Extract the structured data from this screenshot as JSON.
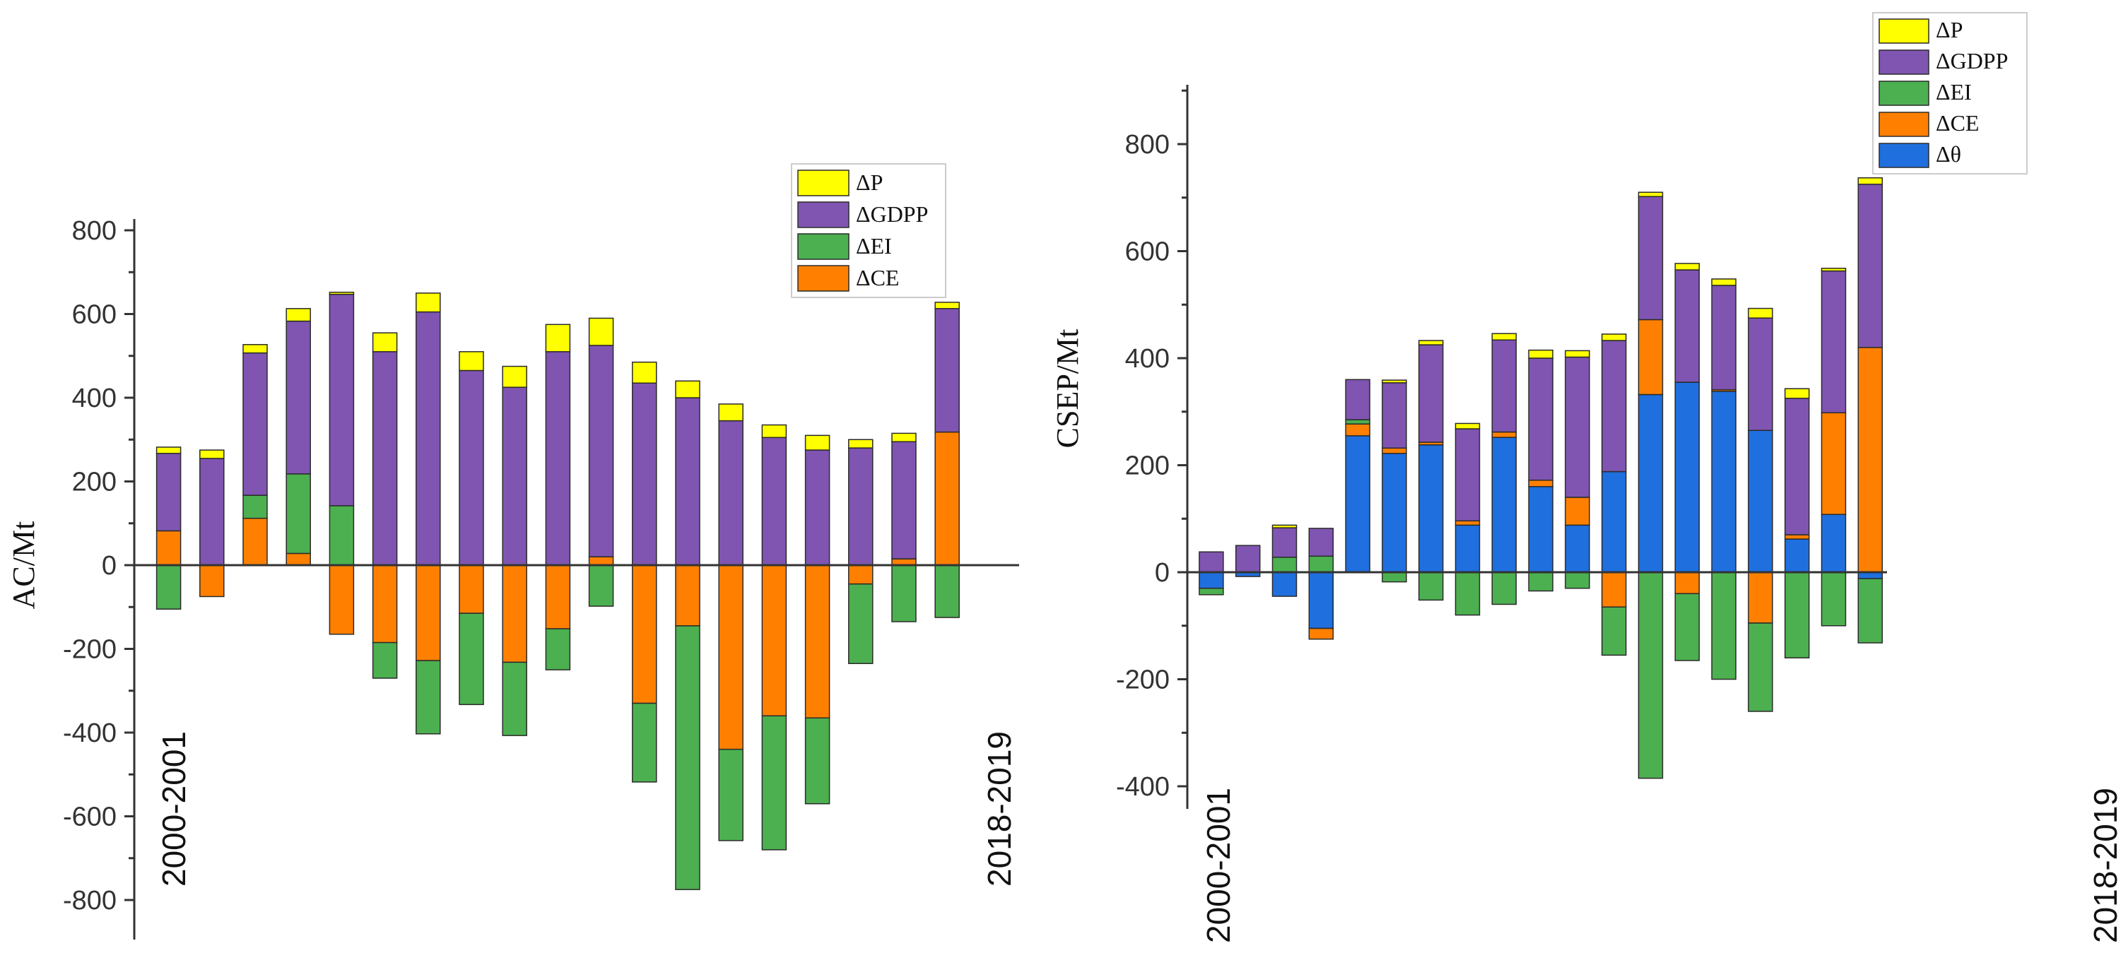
{
  "chart_data": [
    {
      "type": "stacked-bar",
      "id": "ac",
      "title": "",
      "xlabel": "",
      "ylabel": "AC/Mt",
      "ylim": [
        -900,
        800
      ],
      "yticks": [
        -800,
        -600,
        -400,
        -200,
        0,
        200,
        400,
        600,
        800
      ],
      "grid": false,
      "legend_position": "top-right",
      "first_period": "2000-2001",
      "last_period": "2018-2019",
      "series": [
        {
          "name": "ΔCE",
          "color": "#FF8000",
          "values": [
            82,
            -75,
            112,
            28,
            -165,
            -185,
            -228,
            -115,
            -232,
            -152,
            20,
            -330,
            -145,
            -440,
            -360,
            -365,
            -45,
            15,
            318
          ]
        },
        {
          "name": "ΔEI",
          "color": "#4CB050",
          "values": [
            -105,
            0,
            55,
            190,
            142,
            -85,
            -175,
            -218,
            -175,
            -98,
            -98,
            -188,
            -630,
            -218,
            -320,
            -205,
            -190,
            -135,
            -125
          ]
        },
        {
          "name": "ΔGDPP",
          "color": "#7F55B1",
          "values": [
            185,
            255,
            340,
            365,
            505,
            510,
            605,
            465,
            425,
            510,
            505,
            435,
            400,
            345,
            305,
            275,
            280,
            280,
            295
          ]
        },
        {
          "name": "ΔP",
          "color": "#FFFF00",
          "values": [
            15,
            20,
            20,
            30,
            5,
            45,
            45,
            45,
            50,
            65,
            65,
            50,
            40,
            40,
            30,
            35,
            20,
            20,
            15
          ]
        }
      ]
    },
    {
      "type": "stacked-bar",
      "id": "csep",
      "title": "",
      "xlabel": "",
      "ylabel": "CSEP/Mt",
      "ylim": [
        -500,
        900
      ],
      "yticks": [
        -400,
        -200,
        0,
        200,
        400,
        600,
        800
      ],
      "grid": false,
      "legend_position": "top-right",
      "first_period": "2000-2001",
      "last_period": "2018-2019",
      "series": [
        {
          "name": "Δθ",
          "color": "#1F6FDE",
          "values": [
            -30,
            -8,
            -45,
            -105,
            255,
            222,
            238,
            88,
            252,
            160,
            88,
            188,
            332,
            355,
            338,
            265,
            62,
            108,
            -12
          ]
        },
        {
          "name": "ΔCE",
          "color": "#FF8000",
          "values": [
            0,
            0,
            0,
            -20,
            22,
            10,
            5,
            8,
            10,
            12,
            52,
            -65,
            140,
            -40,
            3,
            -95,
            8,
            190,
            420
          ]
        },
        {
          "name": "ΔEI",
          "color": "#4CB050",
          "values": [
            -12,
            0,
            28,
            30,
            8,
            -18,
            -52,
            -80,
            -60,
            -35,
            -30,
            -90,
            -385,
            -125,
            -200,
            -165,
            -160,
            -100,
            -120
          ]
        },
        {
          "name": "ΔGDPP",
          "color": "#7F55B1",
          "values": [
            38,
            50,
            55,
            52,
            75,
            122,
            182,
            172,
            172,
            228,
            262,
            245,
            230,
            210,
            195,
            210,
            255,
            265,
            305
          ]
        },
        {
          "name": "ΔP",
          "color": "#FFFF00",
          "values": [
            0,
            0,
            5,
            0,
            0,
            5,
            8,
            10,
            12,
            15,
            12,
            12,
            8,
            12,
            12,
            18,
            18,
            5,
            12
          ]
        }
      ]
    }
  ]
}
